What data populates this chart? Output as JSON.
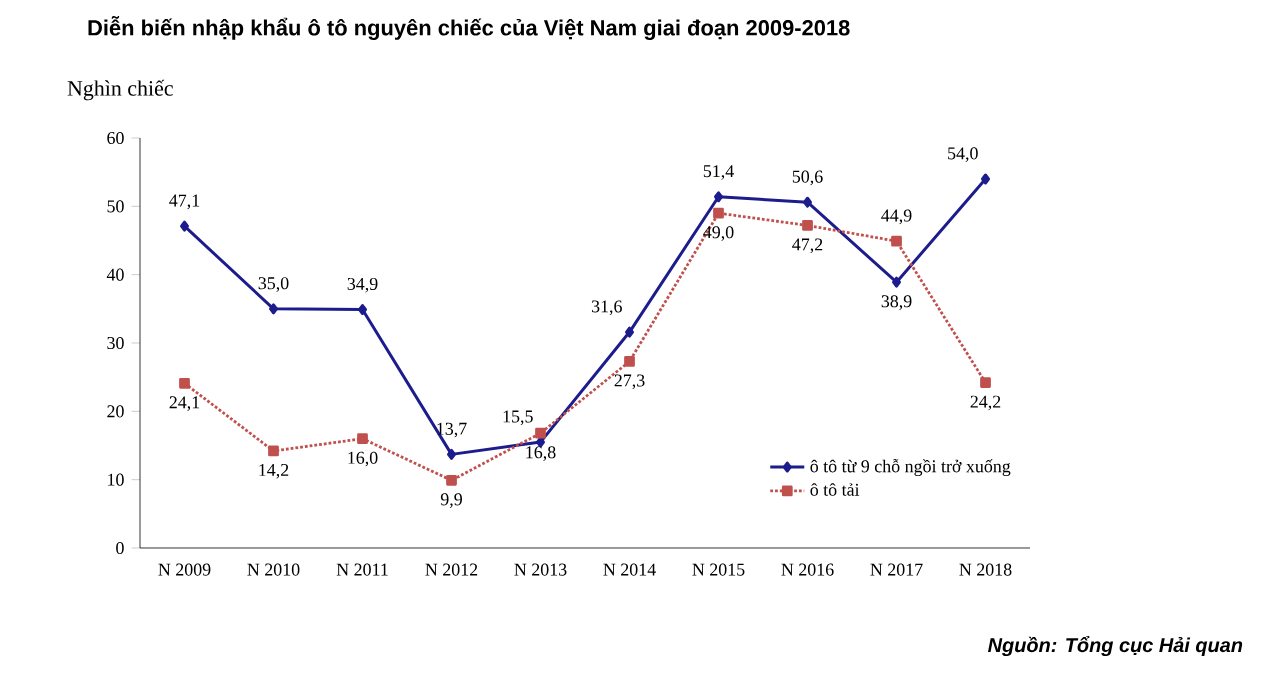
{
  "chart_data": {
    "type": "line",
    "title": "Diễn biến nhập khẩu ô tô nguyên chiếc của Việt Nam giai đoạn 2009-2018",
    "ylabel": "Nghìn chiếc",
    "categories": [
      "N 2009",
      "N 2010",
      "N 2011",
      "N 2012",
      "N 2013",
      "N 2014",
      "N 2015",
      "N 2016",
      "N 2017",
      "N 2018"
    ],
    "series": [
      {
        "name": "ô tô từ 9 chỗ ngồi trở xuống",
        "color": "#1c1c8c",
        "marker": "diamond",
        "line_style": "solid",
        "values": [
          47.1,
          35.0,
          34.9,
          13.7,
          15.5,
          31.6,
          51.4,
          50.6,
          38.9,
          54.0
        ],
        "value_labels": [
          "47,1",
          "35,0",
          "34,9",
          "13,7",
          "15,5",
          "31,6",
          "51,4",
          "50,6",
          "38,9",
          "54,0"
        ]
      },
      {
        "name": "ô tô tải",
        "color": "#c0504d",
        "marker": "square",
        "line_style": "dotted",
        "values": [
          24.1,
          14.2,
          16.0,
          9.9,
          16.8,
          27.3,
          49.0,
          47.2,
          44.9,
          24.2
        ],
        "value_labels": [
          "24,1",
          "14,2",
          "16,0",
          "9,9",
          "16,8",
          "27,3",
          "49,0",
          "47,2",
          "44,9",
          "24,2"
        ]
      }
    ],
    "ylim": [
      0,
      60
    ],
    "yticks": [
      0,
      10,
      20,
      30,
      40,
      50,
      60
    ],
    "grid": false,
    "legend": "bottom right",
    "annotations": [
      "Nguồn: Tổng cục Hải quan"
    ]
  }
}
